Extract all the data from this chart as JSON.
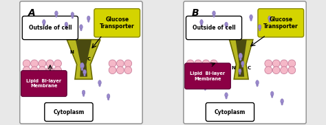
{
  "bg_color": "#e8e8e8",
  "panel_bg": "#ffffff",
  "panel_border": "#999999",
  "label_A": "A",
  "label_B": "B",
  "outside_label": "Outside of cell",
  "cytoplasm_label": "Cytoplasm",
  "membrane_label": "Lipid  Bi-layer\nMembrane",
  "transporter_label": "Glucose\nTransporter",
  "outside_box_color": "#ffffff",
  "outside_box_border": "#000000",
  "cytoplasm_box_color": "#ffffff",
  "cytoplasm_box_border": "#000000",
  "membrane_box_color": "#8b0045",
  "transporter_box_color": "#d4d400",
  "membrane_circle_color": "#f5b8c8",
  "membrane_circle_border": "#c07090",
  "protein_color_light": "#b8b820",
  "protein_color_dark": "#6b6b00",
  "protein_inner": "#4a4a10",
  "glucose_color": "#9988cc",
  "glucose_outline": "#7766aa"
}
